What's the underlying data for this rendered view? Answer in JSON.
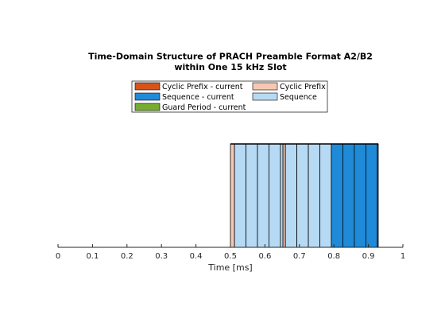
{
  "chart_data": {
    "type": "bar",
    "title_line1": "Time-Domain Structure of PRACH Preamble Format A2/B2",
    "title_line2": "within One 15 kHz Slot",
    "xlabel": "Time  [ms]",
    "xlim": [
      0,
      1
    ],
    "xticks": [
      "0",
      "0.1",
      "0.2",
      "0.3",
      "0.4",
      "0.5",
      "0.6",
      "0.7",
      "0.8",
      "0.9",
      "1"
    ],
    "legend_placement": "top-center",
    "legend": [
      {
        "label": "Cyclic Prefix - current",
        "color": "#D95319"
      },
      {
        "label": "Cyclic Prefix",
        "color": "#F8C7B3"
      },
      {
        "label": "Sequence - current",
        "color": "#1F8AD8"
      },
      {
        "label": "Sequence",
        "color": "#B7DAF4"
      },
      {
        "label": "Guard Period - current",
        "color": "#77AC30"
      }
    ],
    "segments": [
      {
        "type": "Cyclic Prefix",
        "start": 0.5,
        "end": 0.5116
      },
      {
        "type": "Sequence",
        "start": 0.5116,
        "end": 0.5449
      },
      {
        "type": "Sequence",
        "start": 0.5449,
        "end": 0.5783
      },
      {
        "type": "Sequence",
        "start": 0.5783,
        "end": 0.6116
      },
      {
        "type": "Sequence",
        "start": 0.6116,
        "end": 0.6449
      },
      {
        "type": "Sequence",
        "start": 0.6449,
        "end": 0.6523
      },
      {
        "type": "Cyclic Prefix",
        "start": 0.6523,
        "end": 0.6593
      },
      {
        "type": "Sequence",
        "start": 0.6593,
        "end": 0.6926
      },
      {
        "type": "Sequence",
        "start": 0.6926,
        "end": 0.7259
      },
      {
        "type": "Sequence",
        "start": 0.7259,
        "end": 0.7593
      },
      {
        "type": "Sequence",
        "start": 0.7593,
        "end": 0.7926
      },
      {
        "type": "Sequence - current",
        "start": 0.7926,
        "end": 0.8259
      },
      {
        "type": "Sequence - current",
        "start": 0.8259,
        "end": 0.8593
      },
      {
        "type": "Sequence - current",
        "start": 0.8593,
        "end": 0.8926
      },
      {
        "type": "Sequence - current",
        "start": 0.8926,
        "end": 0.9259
      },
      {
        "type": "Sequence - current",
        "start": 0.9259,
        "end": 0.9286
      }
    ]
  }
}
